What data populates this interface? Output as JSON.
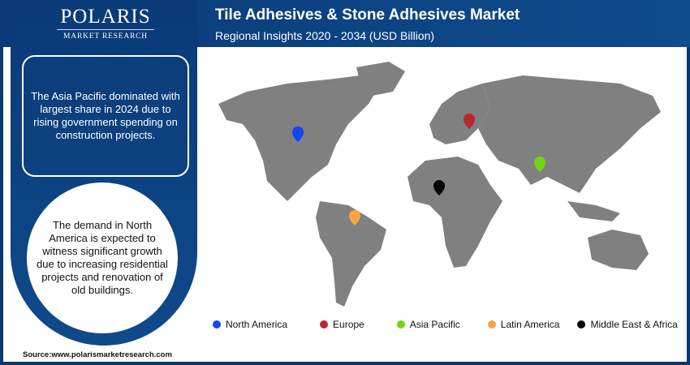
{
  "logo": {
    "name": "POLARIS",
    "sub": "MARKET RESEARCH"
  },
  "header": {
    "title": "Tile Adhesives & Stone Adhesives Market",
    "subtitle": "Regional Insights 2020 - 2034 (USD Billion)"
  },
  "insights": {
    "box_text": "The Asia Pacific dominated with largest share in 2024 due to rising government spending on construction projects.",
    "circle_text": "The demand in North America is expected to witness significant growth due to increasing residential projects and renovation of old buildings."
  },
  "source": "Source:www.polarismarketresearch.com",
  "legend": [
    {
      "label": "North America",
      "color": "#1346f5"
    },
    {
      "label": "Europe",
      "color": "#b8262e"
    },
    {
      "label": "Asia Pacific",
      "color": "#6fd614"
    },
    {
      "label": "Latin America",
      "color": "#f8a540"
    },
    {
      "label": "Middle East & Africa",
      "color": "#050505"
    }
  ]
}
